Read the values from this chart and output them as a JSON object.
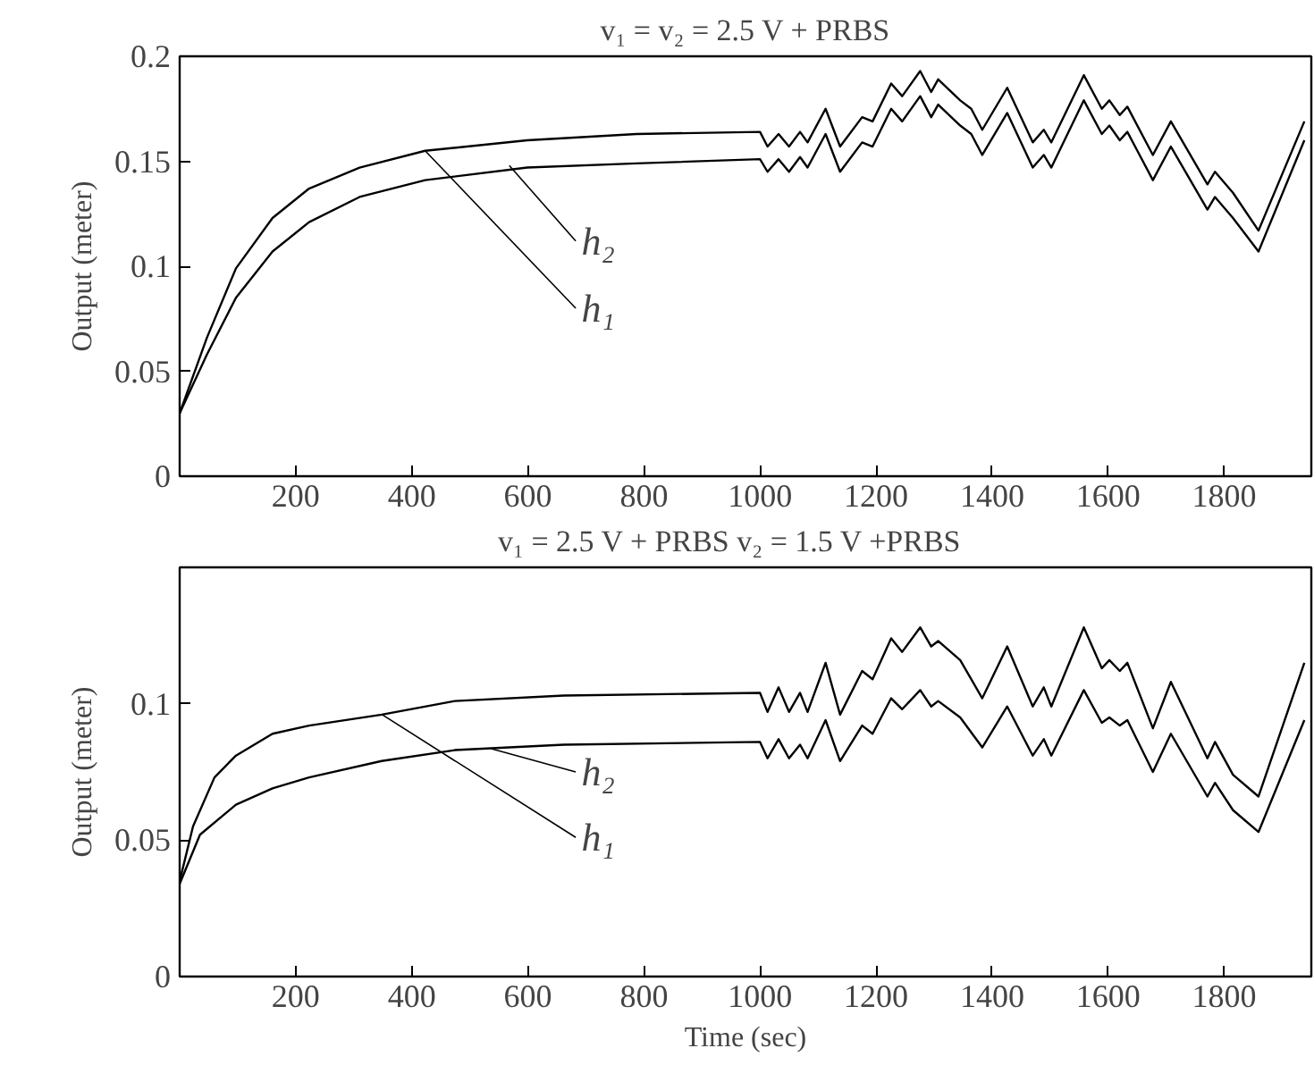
{
  "chart_data": [
    {
      "type": "line",
      "title": "v₁ = v₂ = 2.5 V + PRBS",
      "ylabel": "Output (meter)",
      "xlim": [
        0,
        1950
      ],
      "ylim": [
        0,
        0.2
      ],
      "xticks": [
        200,
        400,
        600,
        800,
        1000,
        1200,
        1400,
        1600,
        1800
      ],
      "yticks": [
        0,
        0.05,
        0.1,
        0.15,
        0.2
      ],
      "grid": false,
      "annotations": [
        {
          "text": "h₂",
          "x": 568,
          "y": 0.148
        },
        {
          "text": "h₁",
          "x": 423,
          "y": 0.155
        }
      ],
      "series": [
        {
          "color": "#000000",
          "x": [
            0,
            47,
            97,
            160,
            223,
            310,
            423,
            599,
            787,
            1000,
            1013,
            1032,
            1050,
            1069,
            1082,
            1113,
            1138,
            1176,
            1194,
            1226,
            1245,
            1276,
            1295,
            1307,
            1345,
            1364,
            1383,
            1426,
            1470,
            1489,
            1502,
            1558,
            1589,
            1602,
            1620,
            1633,
            1677,
            1708,
            1771,
            1784,
            1815,
            1859,
            1938
          ],
          "values": [
            0.03,
            0.066,
            0.099,
            0.123,
            0.137,
            0.147,
            0.155,
            0.16,
            0.163,
            0.164,
            0.157,
            0.163,
            0.157,
            0.164,
            0.159,
            0.175,
            0.157,
            0.171,
            0.169,
            0.187,
            0.181,
            0.193,
            0.183,
            0.189,
            0.179,
            0.175,
            0.165,
            0.185,
            0.159,
            0.165,
            0.159,
            0.191,
            0.175,
            0.179,
            0.172,
            0.176,
            0.153,
            0.169,
            0.139,
            0.145,
            0.135,
            0.117,
            0.169
          ]
        },
        {
          "color": "#000000",
          "x": [
            0,
            47,
            97,
            160,
            223,
            310,
            423,
            599,
            787,
            1000,
            1013,
            1032,
            1050,
            1069,
            1082,
            1113,
            1138,
            1176,
            1194,
            1226,
            1245,
            1276,
            1295,
            1307,
            1345,
            1364,
            1383,
            1426,
            1470,
            1489,
            1502,
            1558,
            1589,
            1602,
            1620,
            1633,
            1677,
            1708,
            1771,
            1784,
            1815,
            1859,
            1938
          ],
          "values": [
            0.03,
            0.058,
            0.085,
            0.107,
            0.121,
            0.133,
            0.141,
            0.147,
            0.149,
            0.151,
            0.145,
            0.151,
            0.145,
            0.152,
            0.147,
            0.163,
            0.145,
            0.159,
            0.157,
            0.175,
            0.169,
            0.181,
            0.171,
            0.177,
            0.167,
            0.163,
            0.153,
            0.173,
            0.147,
            0.153,
            0.147,
            0.179,
            0.163,
            0.167,
            0.16,
            0.164,
            0.141,
            0.157,
            0.127,
            0.133,
            0.123,
            0.107,
            0.16
          ]
        }
      ]
    },
    {
      "type": "line",
      "title": "v₁ = 2.5 V + PRBS     v₂ = 1.5 V +PRBS",
      "xlabel": "Time (sec)",
      "ylabel": "Output (meter)",
      "xlim": [
        0,
        1950
      ],
      "ylim": [
        0,
        0.15
      ],
      "xticks": [
        200,
        400,
        600,
        800,
        1000,
        1200,
        1400,
        1600,
        1800
      ],
      "yticks": [
        0,
        0.05,
        0.1
      ],
      "grid": false,
      "annotations": [
        {
          "text": "h₂",
          "x": 537,
          "y": 0.0835
        },
        {
          "text": "h₁",
          "x": 349,
          "y": 0.096
        }
      ],
      "series": [
        {
          "color": "#000000",
          "x": [
            0,
            23,
            60,
            97,
            160,
            223,
            348,
            474,
            662,
            1000,
            1013,
            1032,
            1050,
            1069,
            1082,
            1113,
            1138,
            1176,
            1194,
            1226,
            1245,
            1276,
            1295,
            1307,
            1345,
            1383,
            1426,
            1470,
            1489,
            1502,
            1558,
            1589,
            1602,
            1620,
            1633,
            1677,
            1708,
            1771,
            1784,
            1815,
            1859,
            1938
          ],
          "values": [
            0.035,
            0.055,
            0.073,
            0.081,
            0.089,
            0.092,
            0.096,
            0.101,
            0.103,
            0.104,
            0.097,
            0.106,
            0.097,
            0.104,
            0.097,
            0.115,
            0.096,
            0.112,
            0.109,
            0.124,
            0.119,
            0.128,
            0.121,
            0.123,
            0.116,
            0.102,
            0.121,
            0.099,
            0.106,
            0.099,
            0.128,
            0.113,
            0.116,
            0.112,
            0.115,
            0.091,
            0.108,
            0.08,
            0.086,
            0.074,
            0.066,
            0.115
          ]
        },
        {
          "color": "#000000",
          "x": [
            0,
            35,
            97,
            160,
            223,
            348,
            474,
            662,
            1000,
            1013,
            1032,
            1050,
            1069,
            1082,
            1113,
            1138,
            1176,
            1194,
            1226,
            1245,
            1276,
            1295,
            1307,
            1345,
            1383,
            1426,
            1470,
            1489,
            1502,
            1558,
            1589,
            1602,
            1620,
            1633,
            1677,
            1708,
            1771,
            1784,
            1815,
            1859,
            1938
          ],
          "values": [
            0.034,
            0.052,
            0.063,
            0.069,
            0.073,
            0.079,
            0.083,
            0.085,
            0.086,
            0.08,
            0.087,
            0.08,
            0.085,
            0.08,
            0.094,
            0.079,
            0.092,
            0.089,
            0.102,
            0.098,
            0.105,
            0.099,
            0.101,
            0.095,
            0.084,
            0.099,
            0.081,
            0.087,
            0.081,
            0.105,
            0.093,
            0.095,
            0.092,
            0.094,
            0.075,
            0.089,
            0.066,
            0.071,
            0.061,
            0.053,
            0.094
          ]
        }
      ]
    }
  ]
}
